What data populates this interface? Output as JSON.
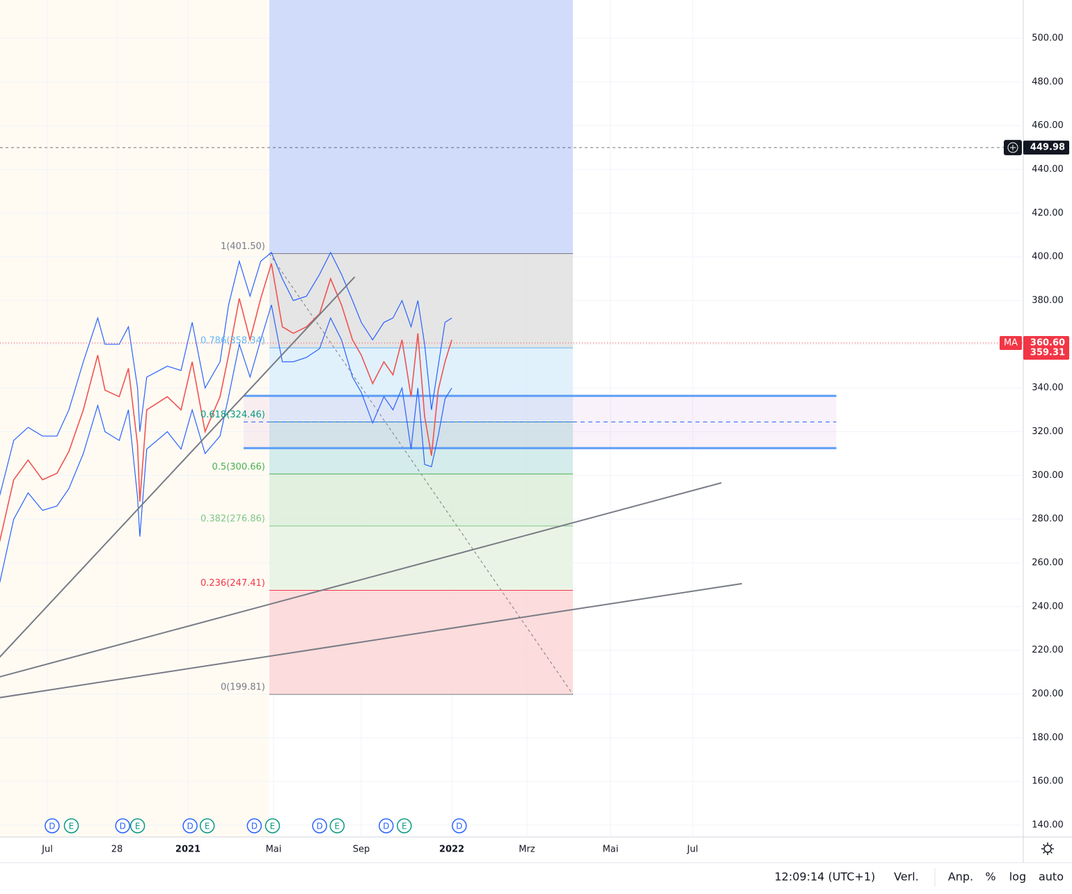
{
  "chart_data": {
    "type": "line",
    "ylim": [
      140,
      500
    ],
    "yticks": [
      {
        "value": 140,
        "label": "140.00"
      },
      {
        "value": 160,
        "label": "160.00"
      },
      {
        "value": 180,
        "label": "180.00"
      },
      {
        "value": 200,
        "label": "200.00"
      },
      {
        "value": 220,
        "label": "220.00"
      },
      {
        "value": 240,
        "label": "240.00"
      },
      {
        "value": 260,
        "label": "260.00"
      },
      {
        "value": 280,
        "label": "280.00"
      },
      {
        "value": 300,
        "label": "300.00"
      },
      {
        "value": 320,
        "label": "320.00"
      },
      {
        "value": 340,
        "label": "340.00"
      },
      {
        "value": 360,
        "label": "360.00"
      },
      {
        "value": 380,
        "label": "380.00"
      },
      {
        "value": 400,
        "label": "400.00"
      },
      {
        "value": 420,
        "label": "420.00"
      },
      {
        "value": 440,
        "label": "440.00"
      },
      {
        "value": 460,
        "label": "460.00"
      },
      {
        "value": 480,
        "label": "480.00"
      },
      {
        "value": 500,
        "label": "500.00"
      }
    ],
    "xticks": [
      {
        "value": 0,
        "label": "Jul"
      },
      {
        "value": 2.9,
        "label": "28"
      },
      {
        "value": 6,
        "label": "2021"
      },
      {
        "value": 10,
        "label": "Mai"
      },
      {
        "value": 14,
        "label": "Sep"
      },
      {
        "value": 18,
        "label": "2022"
      },
      {
        "value": 20,
        "label": "Mrz"
      },
      {
        "value": 22,
        "label": "Mai"
      },
      {
        "value": 24,
        "label": "Jul"
      }
    ],
    "grid": true,
    "x": [
      -2.0,
      -1.4,
      -0.8,
      -0.2,
      0.4,
      0.9,
      1.5,
      2.1,
      2.4,
      3.0,
      3.4,
      3.8,
      3.9,
      4.2,
      5.1,
      5.7,
      6.2,
      6.8,
      7.5,
      7.9,
      8.4,
      8.9,
      9.4,
      9.9,
      10.4,
      10.9,
      11.5,
      12.1,
      12.6,
      13.1,
      13.6,
      14.0,
      14.5,
      15.0,
      15.4,
      15.8,
      16.2,
      16.5,
      16.8,
      17.1,
      17.4,
      17.7,
      18.0
    ],
    "series": [
      {
        "color": "#2962ff",
        "values": [
          290,
          316,
          322,
          318,
          318,
          330,
          352,
          372,
          360,
          360,
          368,
          340,
          320,
          345,
          350,
          348,
          370,
          340,
          352,
          378,
          398,
          382,
          398,
          402,
          390,
          380,
          382,
          392,
          402,
          392,
          380,
          370,
          362,
          370,
          372,
          380,
          368,
          380,
          360,
          330,
          350,
          370,
          372
        ]
      },
      {
        "color": "#2962ff",
        "values": [
          250,
          280,
          292,
          284,
          286,
          294,
          310,
          332,
          320,
          316,
          330,
          290,
          272,
          312,
          320,
          312,
          330,
          310,
          318,
          336,
          360,
          345,
          362,
          378,
          352,
          352,
          354,
          358,
          372,
          362,
          345,
          338,
          324,
          336,
          330,
          340,
          312,
          340,
          305,
          304,
          318,
          335,
          340
        ]
      },
      {
        "color": "#ef5350",
        "values": [
          269,
          298,
          307,
          298,
          301,
          311,
          330,
          355,
          339,
          336,
          349,
          314,
          288,
          330,
          336,
          330,
          352,
          320,
          336,
          355,
          381,
          362,
          381,
          397,
          368,
          365,
          368,
          374,
          390,
          378,
          362,
          355,
          342,
          352,
          346,
          362,
          336,
          365,
          327,
          309,
          339,
          352,
          362
        ]
      }
    ],
    "fib": {
      "x": [
        9.8,
        21.1
      ],
      "levels": [
        {
          "value": 401.5,
          "label": "1(401.50)",
          "color": "#787b86",
          "fill": "#e0e0e0"
        },
        {
          "value": 358.34,
          "label": "0.786(358.34)",
          "color": "#64b5f6",
          "fill": "#dbeefb"
        },
        {
          "value": 324.46,
          "label": "0.618(324.46)",
          "color": "#089981",
          "fill": "#cde9e8"
        },
        {
          "value": 300.66,
          "label": "0.5(300.66)",
          "color": "#4caf50",
          "fill": "#dcedd9"
        },
        {
          "value": 276.86,
          "label": "0.382(276.86)",
          "color": "#81c784",
          "fill": "#e6f2e2"
        },
        {
          "value": 247.41,
          "label": "0.236(247.41)",
          "color": "#f23645",
          "fill": "#fbd6d6"
        },
        {
          "value": 199.81,
          "label": "0(199.81)",
          "color": "#787b86",
          "fill": null
        }
      ]
    },
    "zone": {
      "x": [
        8.6,
        27.5
      ],
      "top": 336.4,
      "bottom": 312.5,
      "mid": 324.46
    },
    "trendlines": [
      {
        "x": [
          -2.0,
          13.7
        ],
        "y": [
          216.7,
          390.8
        ]
      },
      {
        "x": [
          -2.0,
          24.7
        ],
        "y": [
          207.8,
          296.6
        ]
      },
      {
        "x": [
          -2.0,
          25.2
        ],
        "y": [
          198.3,
          250.5
        ]
      }
    ],
    "price_lines": [
      {
        "value": 449.98,
        "label": "449.98"
      },
      {
        "value": 360.6,
        "label": "360.60",
        "tag": "MA"
      },
      {
        "value": 359.31,
        "label": "359.31"
      }
    ],
    "events": [
      {
        "x": 0.2,
        "label": "D"
      },
      {
        "x": 1.0,
        "label": "E"
      },
      {
        "x": 3.15,
        "label": "D"
      },
      {
        "x": 3.8,
        "label": "E"
      },
      {
        "x": 6.1,
        "label": "D"
      },
      {
        "x": 6.9,
        "label": "E"
      },
      {
        "x": 9.1,
        "label": "D"
      },
      {
        "x": 9.95,
        "label": "E"
      },
      {
        "x": 12.1,
        "label": "D"
      },
      {
        "x": 12.9,
        "label": "E"
      },
      {
        "x": 15.1,
        "label": "D"
      },
      {
        "x": 15.9,
        "label": "E"
      },
      {
        "x": 18.2,
        "label": "D"
      }
    ],
    "status": {
      "time": "12:09:14 (UTC+1)",
      "items": [
        "Verl.",
        "Anp.",
        "%",
        "log",
        "auto"
      ]
    }
  }
}
